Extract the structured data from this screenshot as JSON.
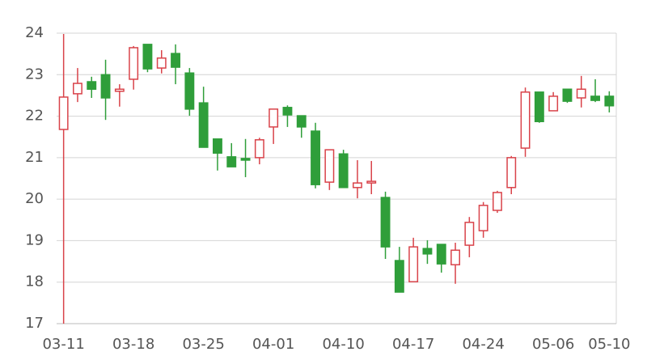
{
  "chart_data": {
    "type": "candlestick",
    "categories": [
      "03-11",
      null,
      null,
      null,
      null,
      "03-18",
      null,
      null,
      null,
      null,
      "03-25",
      null,
      null,
      null,
      null,
      "04-01",
      null,
      null,
      null,
      null,
      "04-10",
      null,
      null,
      null,
      null,
      "04-17",
      null,
      null,
      null,
      null,
      "04-24",
      null,
      null,
      null,
      null,
      "05-06",
      null,
      null,
      null,
      "05-10"
    ],
    "open": [
      21.68,
      22.54,
      22.83,
      23.0,
      22.6,
      22.89,
      23.73,
      23.16,
      23.51,
      23.04,
      22.32,
      21.45,
      21.02,
      20.98,
      21.0,
      21.74,
      22.21,
      22.01,
      21.64,
      20.41,
      21.09,
      20.28,
      20.39,
      20.04,
      18.52,
      18.01,
      18.81,
      18.91,
      18.42,
      18.89,
      19.24,
      19.73,
      20.28,
      21.23,
      22.58,
      22.13,
      22.65,
      22.44,
      22.48,
      22.48
    ],
    "close": [
      22.46,
      22.79,
      22.65,
      22.44,
      22.65,
      23.65,
      23.14,
      23.4,
      23.18,
      22.17,
      21.25,
      21.11,
      20.78,
      20.94,
      21.43,
      22.17,
      22.03,
      21.74,
      20.35,
      21.19,
      20.28,
      20.39,
      20.43,
      18.85,
      17.76,
      18.85,
      18.68,
      18.44,
      18.77,
      19.44,
      19.85,
      20.16,
      21.0,
      22.58,
      21.87,
      22.48,
      22.36,
      22.65,
      22.38,
      22.25
    ],
    "high": [
      23.98,
      23.16,
      22.95,
      23.36,
      22.77,
      23.69,
      23.73,
      23.59,
      23.73,
      23.16,
      22.71,
      21.45,
      21.35,
      21.45,
      21.48,
      22.17,
      22.26,
      22.01,
      21.84,
      21.19,
      21.19,
      20.94,
      20.92,
      20.18,
      18.85,
      19.07,
      19.01,
      18.91,
      18.95,
      19.57,
      19.93,
      20.2,
      21.04,
      22.69,
      22.58,
      22.58,
      22.65,
      22.97,
      22.89,
      22.6
    ],
    "low": [
      17.0,
      22.34,
      22.44,
      21.91,
      22.23,
      22.64,
      23.06,
      23.03,
      22.77,
      22.01,
      21.25,
      20.69,
      20.78,
      20.53,
      20.84,
      21.33,
      21.74,
      21.48,
      20.26,
      20.22,
      20.28,
      20.02,
      20.12,
      18.56,
      17.76,
      18.01,
      18.44,
      18.23,
      17.96,
      18.6,
      19.07,
      19.67,
      20.12,
      21.02,
      21.84,
      22.13,
      22.32,
      22.21,
      22.34,
      22.09
    ],
    "up_color": "#d9434a",
    "down_color": "#2f9e3a",
    "ylim": [
      17,
      24
    ],
    "yticks": [
      17,
      18,
      19,
      20,
      21,
      22,
      23,
      24
    ],
    "grid": true
  }
}
